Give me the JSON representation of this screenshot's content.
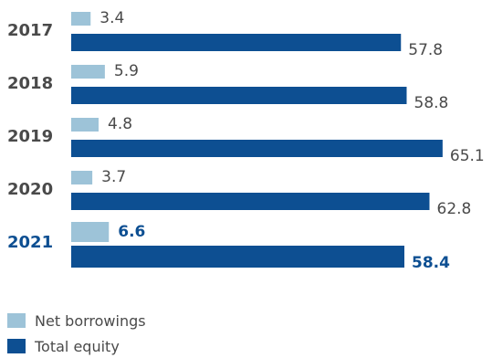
{
  "colors": {
    "net_borrowings": "#9dc3d8",
    "total_equity": "#0d4f92",
    "text": "#4a4a4a",
    "highlight_text": "#0d4f92"
  },
  "chart_data": {
    "type": "bar",
    "orientation": "horizontal",
    "title": "",
    "xlabel": "",
    "ylabel": "",
    "categories": [
      "2017",
      "2018",
      "2019",
      "2020",
      "2021"
    ],
    "highlight_category": "2021",
    "series": [
      {
        "name": "Net borrowings",
        "values": [
          3.4,
          5.9,
          4.8,
          3.7,
          6.6
        ]
      },
      {
        "name": "Total equity",
        "values": [
          57.8,
          58.8,
          65.1,
          62.8,
          58.4
        ]
      }
    ],
    "value_labels": [
      [
        "3.4",
        "5.9",
        "4.8",
        "3.7",
        "6.6"
      ],
      [
        "57.8",
        "58.8",
        "65.1",
        "62.8",
        "58.4"
      ]
    ],
    "legend": {
      "position": "bottom-left",
      "entries": [
        "Net borrowings",
        "Total equity"
      ]
    },
    "grid": false,
    "axis_visible": false
  }
}
